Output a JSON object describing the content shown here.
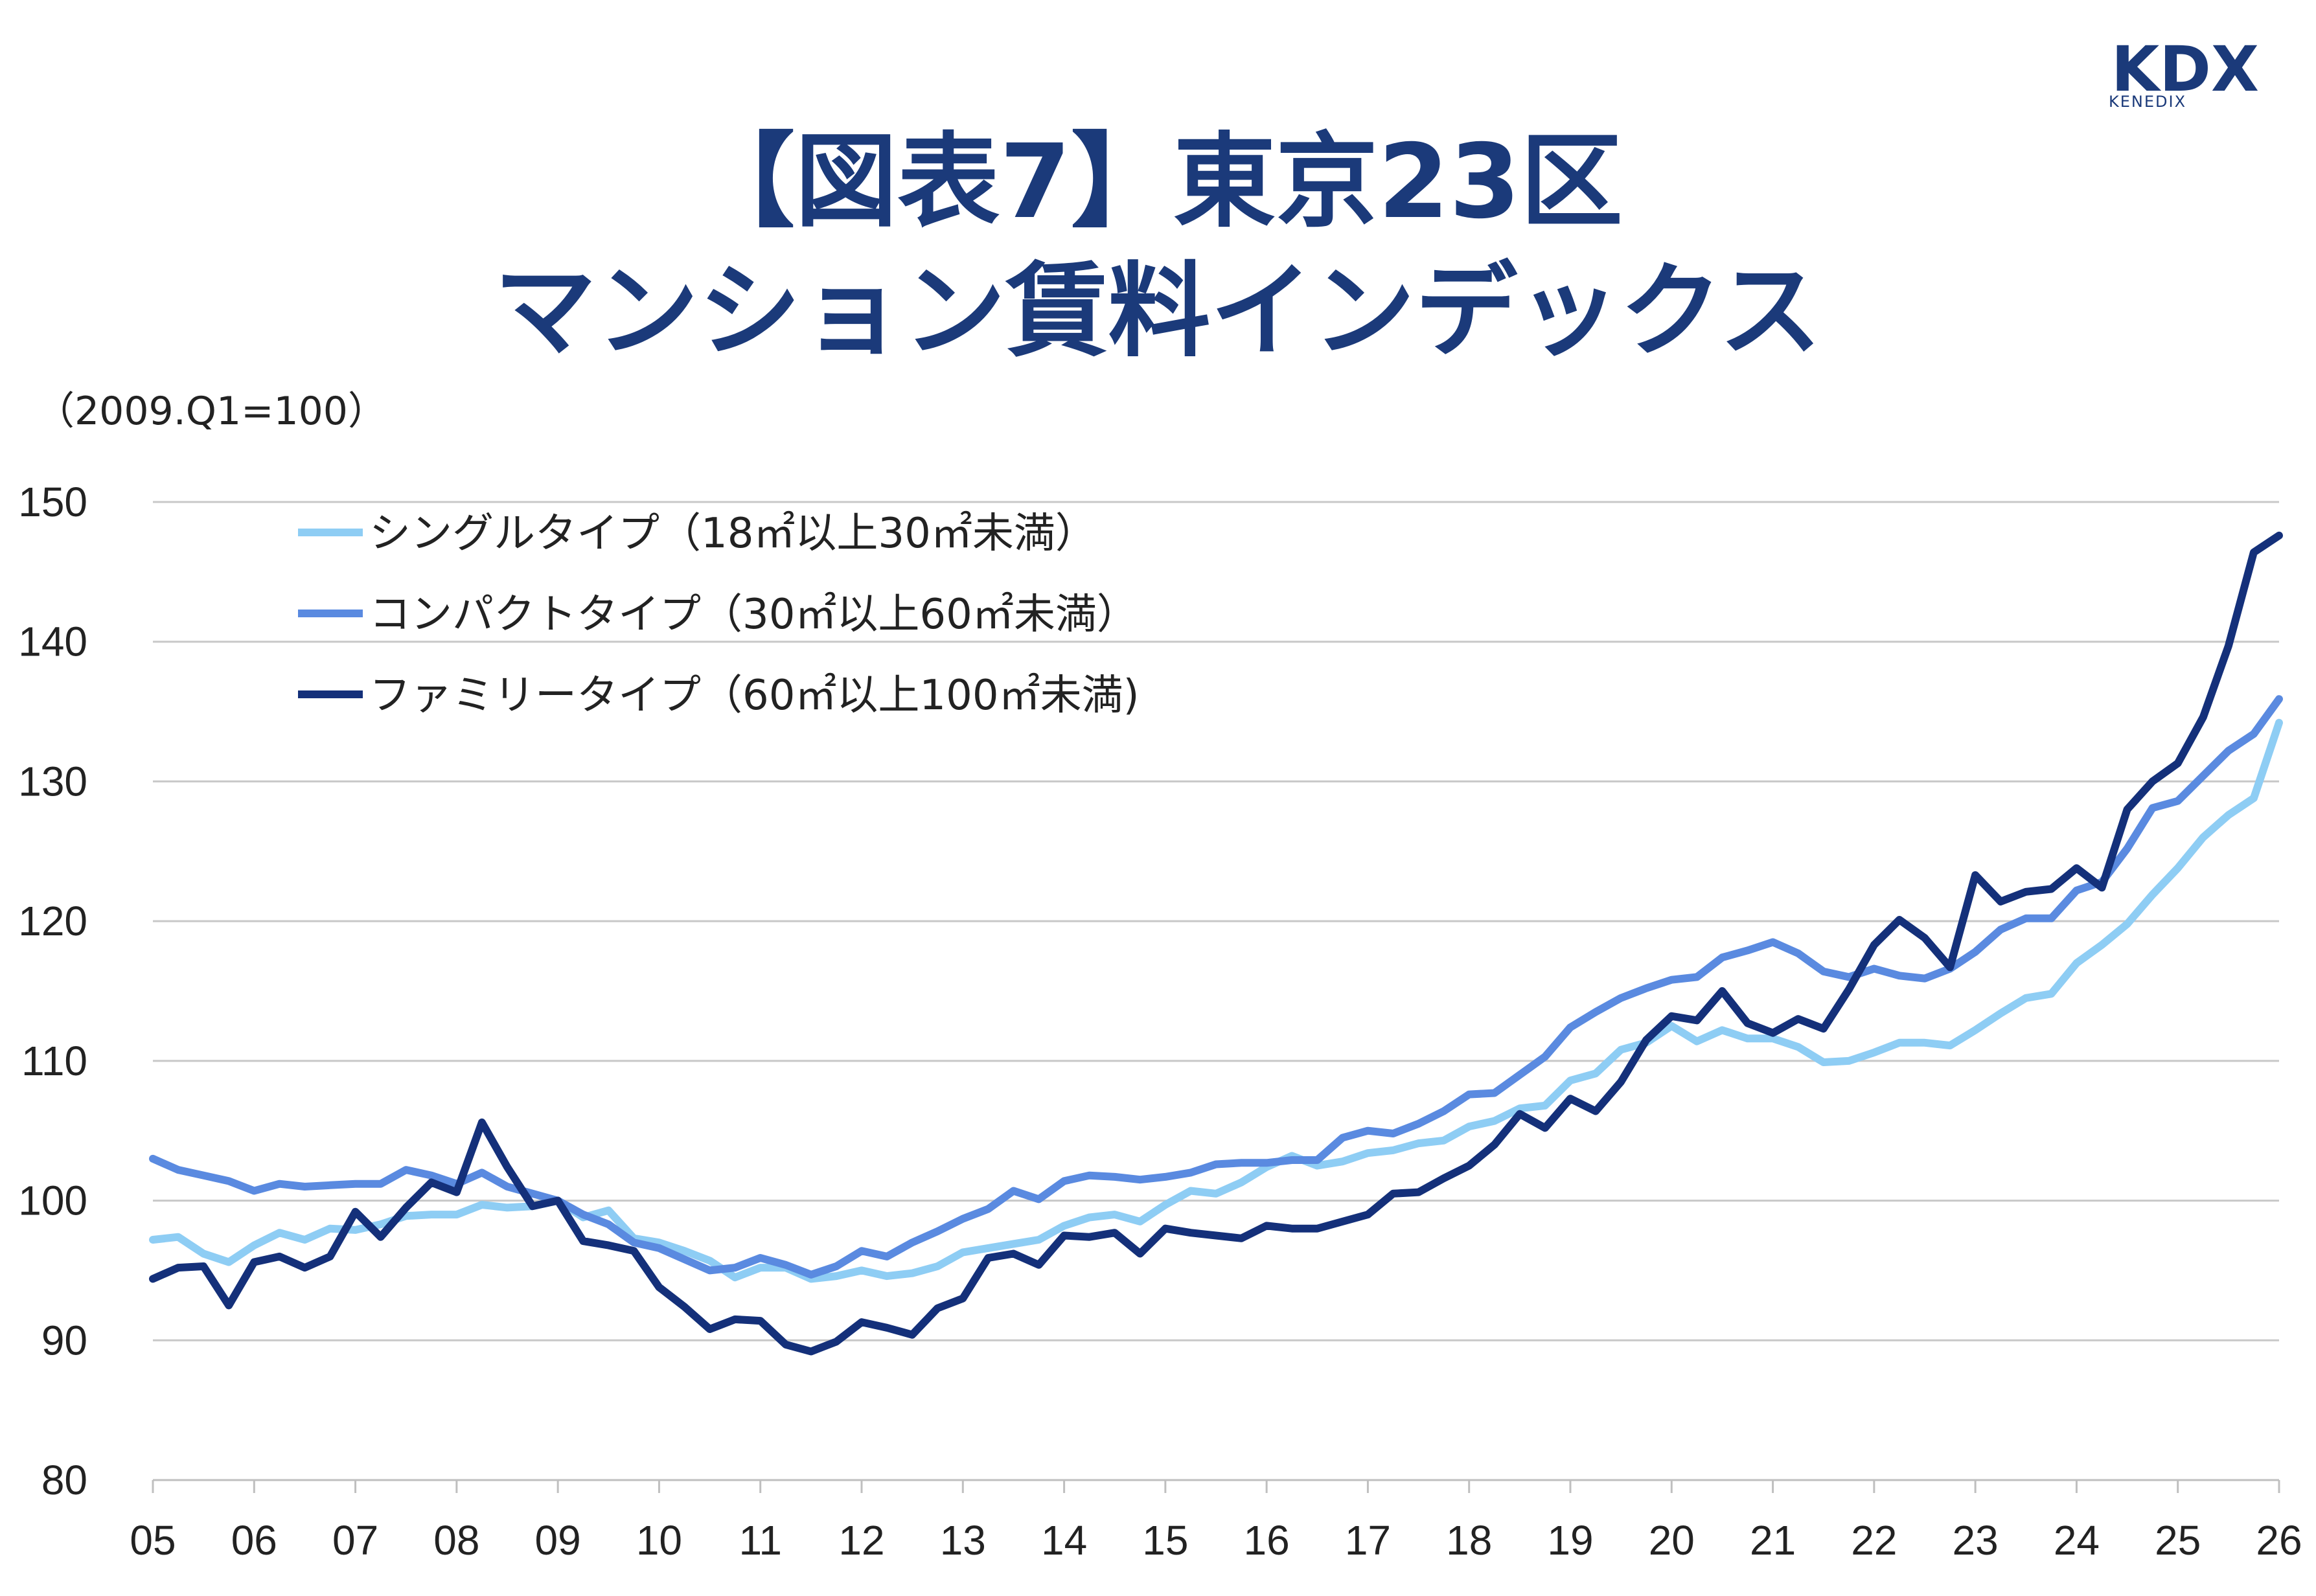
{
  "logo": {
    "main": "KDX",
    "sub": "KENEDIX"
  },
  "chart_data": {
    "type": "line",
    "title_line1": "【図表7】東京23区",
    "title_line2": "マンション賃料インデックス",
    "unit_note": "（2009.Q1=100）",
    "ylim": [
      80,
      150
    ],
    "yticks": [
      "80",
      "90",
      "100",
      "110",
      "120",
      "130",
      "140",
      "150"
    ],
    "xlim": [
      2005,
      2026
    ],
    "xticks": [
      "05",
      "06",
      "07",
      "08",
      "09",
      "10",
      "11",
      "12",
      "13",
      "14",
      "15",
      "16",
      "17",
      "18",
      "19",
      "20",
      "21",
      "22",
      "23",
      "24",
      "25",
      "26"
    ],
    "grid": true,
    "legend_position": "top-left",
    "series": [
      {
        "name": "シングルタイプ（18㎡以上30㎡未満）",
        "color": "#8ecdf4",
        "points": [
          [
            2005.0,
            97.2
          ],
          [
            2005.25,
            97.4
          ],
          [
            2005.5,
            96.2
          ],
          [
            2005.75,
            95.6
          ],
          [
            2006.0,
            96.8
          ],
          [
            2006.25,
            97.7
          ],
          [
            2006.5,
            97.2
          ],
          [
            2006.75,
            98.0
          ],
          [
            2007.0,
            97.9
          ],
          [
            2007.25,
            98.3
          ],
          [
            2007.5,
            98.9
          ],
          [
            2007.75,
            99.0
          ],
          [
            2008.0,
            99.0
          ],
          [
            2008.25,
            99.7
          ],
          [
            2008.5,
            99.5
          ],
          [
            2008.75,
            99.6
          ],
          [
            2009.0,
            100.0
          ],
          [
            2009.25,
            98.8
          ],
          [
            2009.5,
            99.3
          ],
          [
            2009.75,
            97.3
          ],
          [
            2010.0,
            97.0
          ],
          [
            2010.25,
            96.4
          ],
          [
            2010.5,
            95.7
          ],
          [
            2010.75,
            94.5
          ],
          [
            2011.0,
            95.2
          ],
          [
            2011.25,
            95.2
          ],
          [
            2011.5,
            94.4
          ],
          [
            2011.75,
            94.6
          ],
          [
            2012.0,
            95.0
          ],
          [
            2012.25,
            94.6
          ],
          [
            2012.5,
            94.8
          ],
          [
            2012.75,
            95.3
          ],
          [
            2013.0,
            96.3
          ],
          [
            2013.25,
            96.6
          ],
          [
            2013.5,
            96.9
          ],
          [
            2013.75,
            97.2
          ],
          [
            2014.0,
            98.2
          ],
          [
            2014.25,
            98.8
          ],
          [
            2014.5,
            99.0
          ],
          [
            2014.75,
            98.5
          ],
          [
            2015.0,
            99.7
          ],
          [
            2015.25,
            100.7
          ],
          [
            2015.5,
            100.5
          ],
          [
            2015.75,
            101.3
          ],
          [
            2016.0,
            102.4
          ],
          [
            2016.25,
            103.2
          ],
          [
            2016.5,
            102.5
          ],
          [
            2016.75,
            102.8
          ],
          [
            2017.0,
            103.4
          ],
          [
            2017.25,
            103.6
          ],
          [
            2017.5,
            104.1
          ],
          [
            2017.75,
            104.3
          ],
          [
            2018.0,
            105.3
          ],
          [
            2018.25,
            105.7
          ],
          [
            2018.5,
            106.6
          ],
          [
            2018.75,
            106.8
          ],
          [
            2019.0,
            108.6
          ],
          [
            2019.25,
            109.1
          ],
          [
            2019.5,
            110.8
          ],
          [
            2019.75,
            111.3
          ],
          [
            2020.0,
            112.5
          ],
          [
            2020.25,
            111.4
          ],
          [
            2020.5,
            112.2
          ],
          [
            2020.75,
            111.6
          ],
          [
            2021.0,
            111.6
          ],
          [
            2021.25,
            111.0
          ],
          [
            2021.5,
            109.9
          ],
          [
            2021.75,
            110.0
          ],
          [
            2022.0,
            110.6
          ],
          [
            2022.25,
            111.3
          ],
          [
            2022.5,
            111.3
          ],
          [
            2022.75,
            111.1
          ],
          [
            2023.0,
            112.2
          ],
          [
            2023.25,
            113.4
          ],
          [
            2023.5,
            114.5
          ],
          [
            2023.75,
            114.8
          ],
          [
            2024.0,
            117.0
          ],
          [
            2024.25,
            118.3
          ],
          [
            2024.5,
            119.8
          ],
          [
            2024.75,
            121.9
          ],
          [
            2025.0,
            123.8
          ],
          [
            2025.25,
            126.0
          ],
          [
            2025.5,
            127.6
          ],
          [
            2025.75,
            128.8
          ],
          [
            2026.0,
            134.2
          ]
        ]
      },
      {
        "name": "コンパクトタイプ（30㎡以上60㎡未満）",
        "color": "#5a8ae0",
        "points": [
          [
            2005.0,
            103.0
          ],
          [
            2005.25,
            102.2
          ],
          [
            2005.5,
            101.8
          ],
          [
            2005.75,
            101.4
          ],
          [
            2006.0,
            100.7
          ],
          [
            2006.25,
            101.2
          ],
          [
            2006.5,
            101.0
          ],
          [
            2006.75,
            101.1
          ],
          [
            2007.0,
            101.2
          ],
          [
            2007.25,
            101.2
          ],
          [
            2007.5,
            102.2
          ],
          [
            2007.75,
            101.8
          ],
          [
            2008.0,
            101.2
          ],
          [
            2008.25,
            102.0
          ],
          [
            2008.5,
            101.0
          ],
          [
            2008.75,
            100.5
          ],
          [
            2009.0,
            100.0
          ],
          [
            2009.25,
            99.0
          ],
          [
            2009.5,
            98.3
          ],
          [
            2009.75,
            97.0
          ],
          [
            2010.0,
            96.6
          ],
          [
            2010.25,
            95.8
          ],
          [
            2010.5,
            95.0
          ],
          [
            2010.75,
            95.2
          ],
          [
            2011.0,
            95.9
          ],
          [
            2011.25,
            95.4
          ],
          [
            2011.5,
            94.7
          ],
          [
            2011.75,
            95.3
          ],
          [
            2012.0,
            96.4
          ],
          [
            2012.25,
            96.0
          ],
          [
            2012.5,
            97.0
          ],
          [
            2012.75,
            97.8
          ],
          [
            2013.0,
            98.7
          ],
          [
            2013.25,
            99.4
          ],
          [
            2013.5,
            100.7
          ],
          [
            2013.75,
            100.1
          ],
          [
            2014.0,
            101.4
          ],
          [
            2014.25,
            101.8
          ],
          [
            2014.5,
            101.7
          ],
          [
            2014.75,
            101.5
          ],
          [
            2015.0,
            101.7
          ],
          [
            2015.25,
            102.0
          ],
          [
            2015.5,
            102.6
          ],
          [
            2015.75,
            102.7
          ],
          [
            2016.0,
            102.7
          ],
          [
            2016.25,
            102.9
          ],
          [
            2016.5,
            102.9
          ],
          [
            2016.75,
            104.5
          ],
          [
            2017.0,
            105.0
          ],
          [
            2017.25,
            104.8
          ],
          [
            2017.5,
            105.5
          ],
          [
            2017.75,
            106.4
          ],
          [
            2018.0,
            107.6
          ],
          [
            2018.25,
            107.7
          ],
          [
            2018.5,
            109.0
          ],
          [
            2018.75,
            110.3
          ],
          [
            2019.0,
            112.4
          ],
          [
            2019.25,
            113.5
          ],
          [
            2019.5,
            114.5
          ],
          [
            2019.75,
            115.2
          ],
          [
            2020.0,
            115.8
          ],
          [
            2020.25,
            116.0
          ],
          [
            2020.5,
            117.4
          ],
          [
            2020.75,
            117.9
          ],
          [
            2021.0,
            118.5
          ],
          [
            2021.25,
            117.7
          ],
          [
            2021.5,
            116.4
          ],
          [
            2021.75,
            116.0
          ],
          [
            2022.0,
            116.6
          ],
          [
            2022.25,
            116.1
          ],
          [
            2022.5,
            115.9
          ],
          [
            2022.75,
            116.6
          ],
          [
            2023.0,
            117.8
          ],
          [
            2023.25,
            119.4
          ],
          [
            2023.5,
            120.2
          ],
          [
            2023.75,
            120.2
          ],
          [
            2024.0,
            122.2
          ],
          [
            2024.25,
            122.8
          ],
          [
            2024.5,
            125.2
          ],
          [
            2024.75,
            128.1
          ],
          [
            2025.0,
            128.6
          ],
          [
            2025.25,
            130.4
          ],
          [
            2025.5,
            132.2
          ],
          [
            2025.75,
            133.4
          ],
          [
            2026.0,
            135.9
          ]
        ]
      },
      {
        "name": "ファミリータイプ（60㎡以上100㎡未満)",
        "color": "#14307a",
        "points": [
          [
            2005.0,
            94.4
          ],
          [
            2005.25,
            95.2
          ],
          [
            2005.5,
            95.3
          ],
          [
            2005.75,
            92.5
          ],
          [
            2006.0,
            95.6
          ],
          [
            2006.25,
            96.0
          ],
          [
            2006.5,
            95.2
          ],
          [
            2006.75,
            96.0
          ],
          [
            2007.0,
            99.2
          ],
          [
            2007.25,
            97.4
          ],
          [
            2007.5,
            99.5
          ],
          [
            2007.75,
            101.3
          ],
          [
            2008.0,
            100.6
          ],
          [
            2008.25,
            105.6
          ],
          [
            2008.5,
            102.4
          ],
          [
            2008.75,
            99.6
          ],
          [
            2009.0,
            100.0
          ],
          [
            2009.25,
            97.1
          ],
          [
            2009.5,
            96.8
          ],
          [
            2009.75,
            96.4
          ],
          [
            2010.0,
            93.8
          ],
          [
            2010.25,
            92.4
          ],
          [
            2010.5,
            90.8
          ],
          [
            2010.75,
            91.5
          ],
          [
            2011.0,
            91.4
          ],
          [
            2011.25,
            89.7
          ],
          [
            2011.5,
            89.2
          ],
          [
            2011.75,
            89.9
          ],
          [
            2012.0,
            91.3
          ],
          [
            2012.25,
            90.9
          ],
          [
            2012.5,
            90.4
          ],
          [
            2012.75,
            92.3
          ],
          [
            2013.0,
            93.0
          ],
          [
            2013.25,
            95.9
          ],
          [
            2013.5,
            96.2
          ],
          [
            2013.75,
            95.4
          ],
          [
            2014.0,
            97.5
          ],
          [
            2014.25,
            97.4
          ],
          [
            2014.5,
            97.7
          ],
          [
            2014.75,
            96.2
          ],
          [
            2015.0,
            98.0
          ],
          [
            2015.25,
            97.7
          ],
          [
            2015.5,
            97.5
          ],
          [
            2015.75,
            97.3
          ],
          [
            2016.0,
            98.2
          ],
          [
            2016.25,
            98.0
          ],
          [
            2016.5,
            98.0
          ],
          [
            2016.75,
            98.5
          ],
          [
            2017.0,
            99.0
          ],
          [
            2017.25,
            100.5
          ],
          [
            2017.5,
            100.6
          ],
          [
            2017.75,
            101.6
          ],
          [
            2018.0,
            102.5
          ],
          [
            2018.25,
            104.0
          ],
          [
            2018.5,
            106.2
          ],
          [
            2018.75,
            105.2
          ],
          [
            2019.0,
            107.3
          ],
          [
            2019.25,
            106.4
          ],
          [
            2019.5,
            108.5
          ],
          [
            2019.75,
            111.5
          ],
          [
            2020.0,
            113.2
          ],
          [
            2020.25,
            112.9
          ],
          [
            2020.5,
            115.0
          ],
          [
            2020.75,
            112.7
          ],
          [
            2021.0,
            112.0
          ],
          [
            2021.25,
            113.0
          ],
          [
            2021.5,
            112.3
          ],
          [
            2021.75,
            115.1
          ],
          [
            2022.0,
            118.3
          ],
          [
            2022.25,
            120.1
          ],
          [
            2022.5,
            118.8
          ],
          [
            2022.75,
            116.7
          ],
          [
            2023.0,
            123.3
          ],
          [
            2023.25,
            121.4
          ],
          [
            2023.5,
            122.1
          ],
          [
            2023.75,
            122.3
          ],
          [
            2024.0,
            123.8
          ],
          [
            2024.25,
            122.4
          ],
          [
            2024.5,
            128.0
          ],
          [
            2024.75,
            130.0
          ],
          [
            2025.0,
            131.3
          ],
          [
            2025.25,
            134.6
          ],
          [
            2025.5,
            139.7
          ],
          [
            2025.75,
            146.4
          ],
          [
            2026.0,
            147.6
          ]
        ]
      }
    ]
  }
}
